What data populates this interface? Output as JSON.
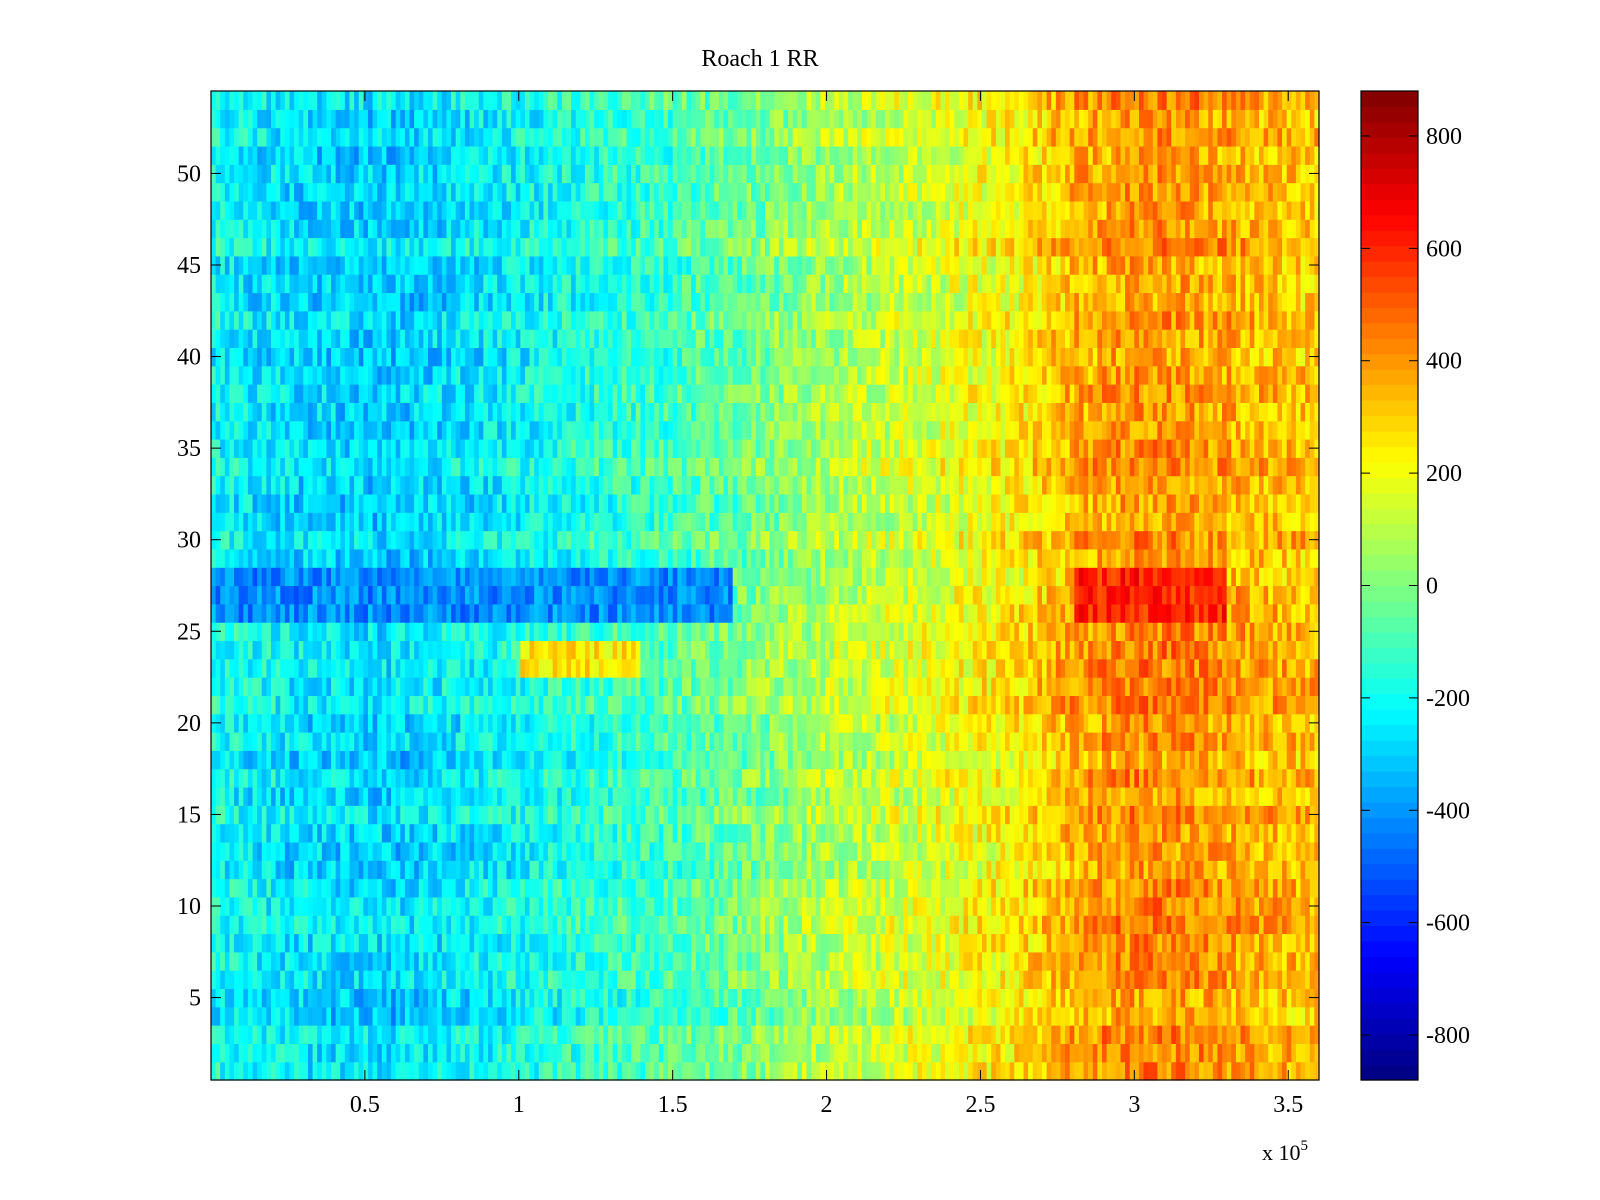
{
  "chart_data": {
    "type": "heatmap",
    "title": "Roach 1 RR",
    "xlabel": "",
    "ylabel": "",
    "x_range": [
      0,
      360000
    ],
    "y_range": [
      0.5,
      54.5
    ],
    "n_rows": 54,
    "x_multiplier_label": "x 10",
    "x_multiplier_exponent": "5",
    "x_ticks": [
      {
        "value": 50000,
        "label": "0.5"
      },
      {
        "value": 100000,
        "label": "1"
      },
      {
        "value": 150000,
        "label": "1.5"
      },
      {
        "value": 200000,
        "label": "2"
      },
      {
        "value": 250000,
        "label": "2.5"
      },
      {
        "value": 300000,
        "label": "3"
      },
      {
        "value": 350000,
        "label": "3.5"
      }
    ],
    "y_ticks": [
      {
        "value": 5,
        "label": "5"
      },
      {
        "value": 10,
        "label": "10"
      },
      {
        "value": 15,
        "label": "15"
      },
      {
        "value": 20,
        "label": "20"
      },
      {
        "value": 25,
        "label": "25"
      },
      {
        "value": 30,
        "label": "30"
      },
      {
        "value": 35,
        "label": "35"
      },
      {
        "value": 40,
        "label": "40"
      },
      {
        "value": 45,
        "label": "45"
      },
      {
        "value": 50,
        "label": "50"
      }
    ],
    "colorbar": {
      "colormap": "jet",
      "range": [
        -880,
        880
      ],
      "ticks": [
        {
          "value": 800,
          "label": "800"
        },
        {
          "value": 600,
          "label": "600"
        },
        {
          "value": 400,
          "label": "400"
        },
        {
          "value": 200,
          "label": "200"
        },
        {
          "value": 0,
          "label": "0"
        },
        {
          "value": -200,
          "label": "-200"
        },
        {
          "value": -400,
          "label": "-400"
        },
        {
          "value": -600,
          "label": "-600"
        },
        {
          "value": -800,
          "label": "-800"
        }
      ]
    },
    "trend_profile": [
      {
        "x": 0,
        "value": -200
      },
      {
        "x": 30000,
        "value": -270
      },
      {
        "x": 60000,
        "value": -290
      },
      {
        "x": 90000,
        "value": -230
      },
      {
        "x": 120000,
        "value": -160
      },
      {
        "x": 150000,
        "value": -100
      },
      {
        "x": 175000,
        "value": -20
      },
      {
        "x": 200000,
        "value": 80
      },
      {
        "x": 230000,
        "value": 150
      },
      {
        "x": 260000,
        "value": 240
      },
      {
        "x": 280000,
        "value": 360
      },
      {
        "x": 300000,
        "value": 420
      },
      {
        "x": 320000,
        "value": 400
      },
      {
        "x": 340000,
        "value": 350
      },
      {
        "x": 360000,
        "value": 330
      }
    ],
    "notable_features": [
      {
        "description": "warm band",
        "rows": [
          23,
          24
        ],
        "x_range": [
          100000,
          140000
        ],
        "value": 250
      },
      {
        "description": "cool band",
        "rows": [
          26,
          27,
          28
        ],
        "x_range": [
          0,
          170000
        ],
        "value": -420
      },
      {
        "description": "hot band",
        "rows": [
          26,
          27,
          28
        ],
        "x_range": [
          280000,
          330000
        ],
        "value": 600
      }
    ]
  }
}
